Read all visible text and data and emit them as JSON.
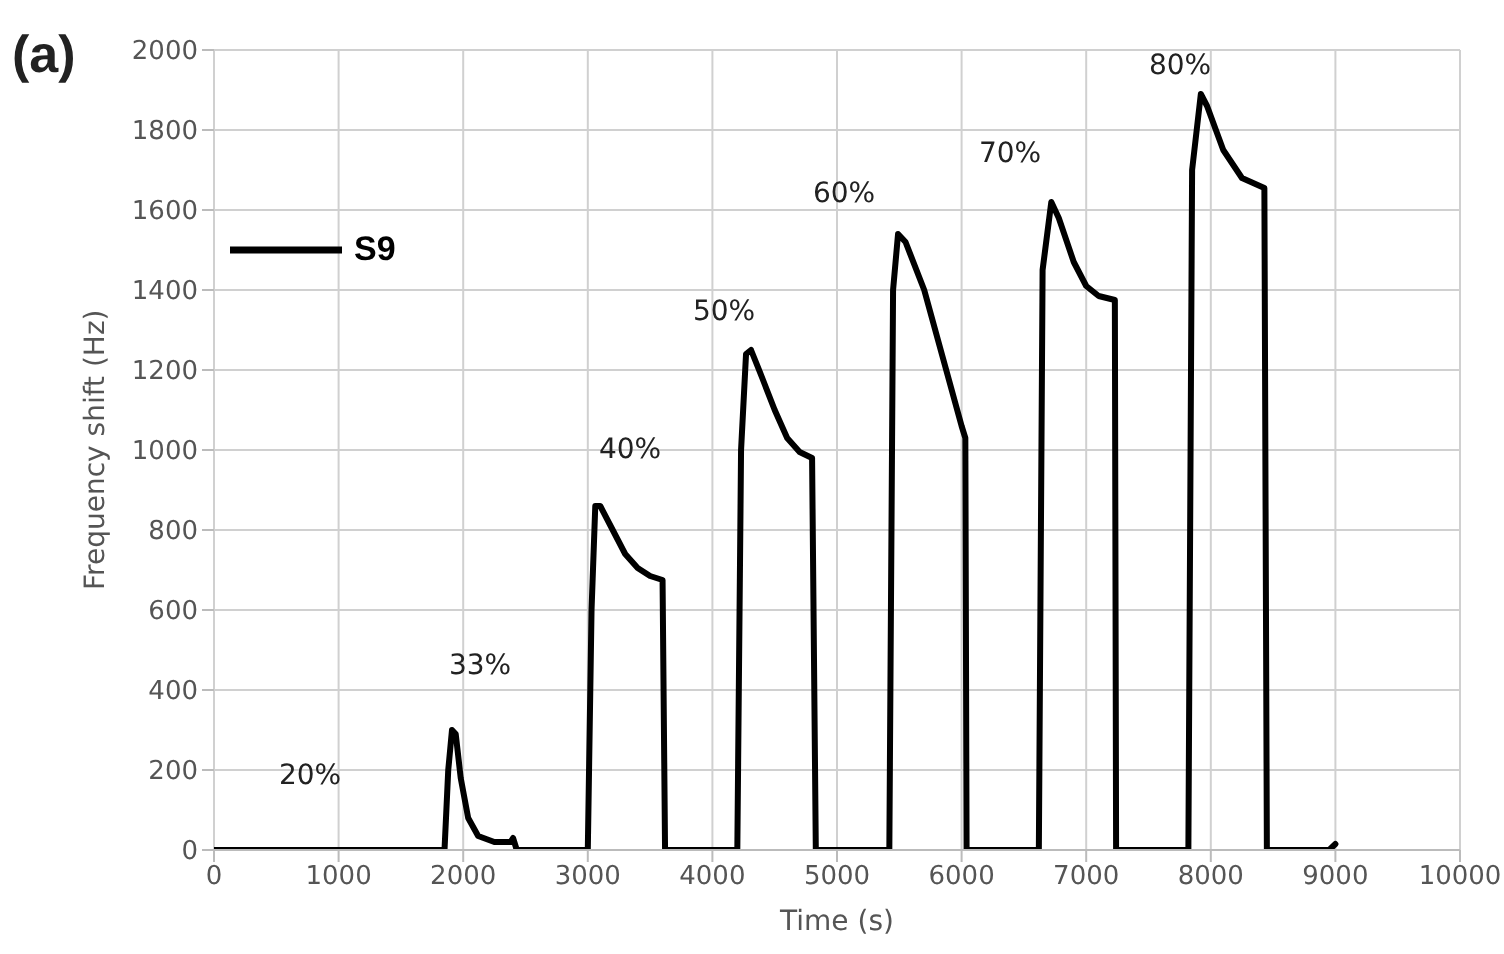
{
  "chart_data": {
    "type": "line",
    "xlabel": "Time (s)",
    "ylabel": "Frequency shift (Hz)",
    "xlim": [
      0,
      10000
    ],
    "xticks": [
      0,
      1000,
      2000,
      3000,
      4000,
      5000,
      6000,
      7000,
      8000,
      9000,
      10000
    ],
    "ylim": [
      0,
      2000
    ],
    "yticks": [
      0,
      200,
      400,
      600,
      800,
      1000,
      1200,
      1400,
      1600,
      1800,
      2000
    ],
    "grid": true,
    "legend": "top left",
    "marker": "none",
    "line_style": "solid",
    "series": [
      {
        "name": "S9",
        "color": "#000000",
        "x": [
          0,
          1850,
          1880,
          1910,
          1940,
          1980,
          2040,
          2120,
          2250,
          2380,
          2400,
          2430,
          3000,
          3030,
          3060,
          3100,
          3200,
          3300,
          3400,
          3500,
          3600,
          3620,
          4200,
          4230,
          4270,
          4310,
          4400,
          4500,
          4600,
          4700,
          4800,
          4830,
          5420,
          5450,
          5490,
          5550,
          5700,
          5850,
          6000,
          6030,
          6040,
          6620,
          6650,
          6720,
          6780,
          6900,
          7000,
          7100,
          7230,
          7240,
          7820,
          7850,
          7920,
          7970,
          8100,
          8250,
          8430,
          8450,
          8950,
          9000
        ],
        "values": [
          0,
          0,
          200,
          300,
          290,
          180,
          80,
          35,
          20,
          20,
          30,
          0,
          0,
          600,
          860,
          860,
          800,
          740,
          705,
          685,
          675,
          0,
          0,
          1000,
          1240,
          1250,
          1180,
          1100,
          1030,
          995,
          980,
          0,
          0,
          1400,
          1540,
          1520,
          1400,
          1230,
          1060,
          1030,
          0,
          0,
          1450,
          1620,
          1580,
          1470,
          1410,
          1385,
          1375,
          0,
          0,
          1700,
          1890,
          1860,
          1750,
          1680,
          1655,
          0,
          0,
          15
        ]
      }
    ],
    "annotations": [
      "(a)",
      "20%",
      "33%",
      "40%",
      "50%",
      "60%",
      "70%",
      "80%"
    ]
  }
}
